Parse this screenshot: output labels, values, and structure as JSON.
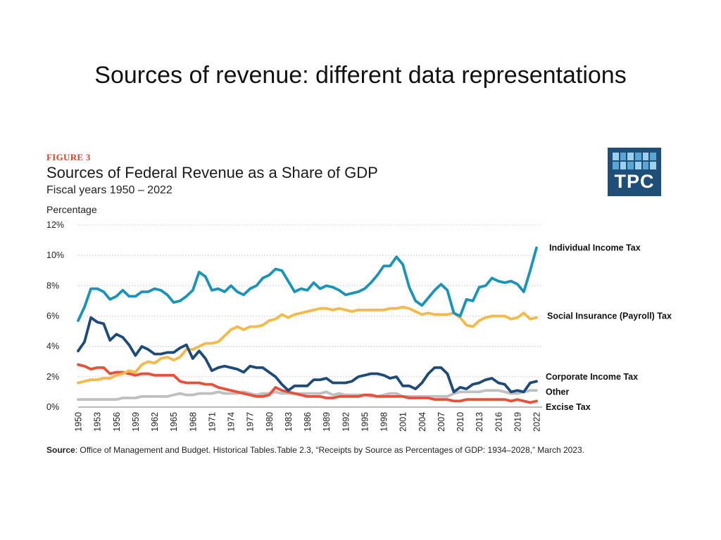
{
  "slide": {
    "title": "Sources of revenue: different data representations"
  },
  "figure": {
    "label": "FIGURE 3",
    "title": "Sources of Federal Revenue as a Share of GDP",
    "subtitle": "Fiscal years 1950 – 2022",
    "y_axis_label": "Percentage",
    "logo_text": "TPC",
    "source_label": "Source",
    "source_text": ": Office of Management and Budget. Historical Tables.Table 2.3, “Receipts by Source as Percentages of GDP: 1934–2028,” March 2023."
  },
  "chart_data": {
    "type": "line",
    "title": "Sources of Federal Revenue as a Share of GDP",
    "xlabel": "",
    "ylabel": "Percentage",
    "x_start": 1950,
    "x_end": 2022,
    "xlim": [
      1950,
      2022
    ],
    "ylim": [
      0,
      12
    ],
    "yticks": [
      0,
      2,
      4,
      6,
      8,
      10,
      12
    ],
    "ytick_labels": [
      "0%",
      "2%",
      "4%",
      "6%",
      "8%",
      "10%",
      "12%"
    ],
    "xticks": [
      1950,
      1953,
      1956,
      1959,
      1962,
      1965,
      1968,
      1971,
      1974,
      1977,
      1980,
      1983,
      1986,
      1989,
      1992,
      1995,
      1998,
      2001,
      2004,
      2007,
      2010,
      2013,
      2016,
      2019,
      2022
    ],
    "xtick_labels": [
      "1950",
      "1953",
      "1956",
      "1959",
      "1962",
      "1965",
      "1968",
      "1971",
      "1974",
      "1977",
      "1980",
      "1983",
      "1986",
      "1989",
      "1992",
      "1995",
      "1998",
      "2001",
      "2004",
      "2007",
      "2010",
      "2013",
      "2016",
      "2019",
      "2022"
    ],
    "grid": "horizontal dotted",
    "series": [
      {
        "name": "Individual Income Tax",
        "color": "#1a93b8",
        "values": [
          5.7,
          6.6,
          7.8,
          7.8,
          7.6,
          7.1,
          7.3,
          7.7,
          7.3,
          7.3,
          7.6,
          7.6,
          7.8,
          7.7,
          7.4,
          6.9,
          7.0,
          7.3,
          7.7,
          8.9,
          8.6,
          7.7,
          7.8,
          7.6,
          8.0,
          7.6,
          7.4,
          7.8,
          8.0,
          8.5,
          8.7,
          9.1,
          9.0,
          8.3,
          7.6,
          7.8,
          7.7,
          8.2,
          7.8,
          8.0,
          7.9,
          7.7,
          7.4,
          7.5,
          7.6,
          7.8,
          8.2,
          8.7,
          9.3,
          9.3,
          9.9,
          9.4,
          7.9,
          7.0,
          6.7,
          7.2,
          7.7,
          8.1,
          7.7,
          6.2,
          6.0,
          7.1,
          7.0,
          7.9,
          8.0,
          8.5,
          8.3,
          8.2,
          8.3,
          8.1,
          7.6,
          9.0,
          10.5
        ]
      },
      {
        "name": "Social Insurance (Payroll) Tax",
        "color": "#f5b94a",
        "values": [
          1.6,
          1.7,
          1.8,
          1.8,
          1.9,
          1.9,
          2.1,
          2.2,
          2.4,
          2.3,
          2.8,
          3.0,
          2.9,
          3.2,
          3.3,
          3.1,
          3.3,
          3.8,
          3.8,
          4.0,
          4.2,
          4.2,
          4.3,
          4.7,
          5.1,
          5.3,
          5.1,
          5.3,
          5.3,
          5.4,
          5.7,
          5.8,
          6.1,
          5.9,
          6.1,
          6.2,
          6.3,
          6.4,
          6.5,
          6.5,
          6.4,
          6.5,
          6.4,
          6.3,
          6.4,
          6.4,
          6.4,
          6.4,
          6.4,
          6.5,
          6.5,
          6.6,
          6.5,
          6.3,
          6.1,
          6.2,
          6.1,
          6.1,
          6.1,
          6.2,
          5.9,
          5.4,
          5.3,
          5.7,
          5.9,
          6.0,
          6.0,
          6.0,
          5.8,
          5.9,
          6.2,
          5.8,
          5.9
        ]
      },
      {
        "name": "Corporate Income Tax",
        "color": "#1e4a78",
        "values": [
          3.7,
          4.3,
          5.9,
          5.6,
          5.5,
          4.4,
          4.8,
          4.6,
          4.1,
          3.4,
          4.0,
          3.8,
          3.5,
          3.5,
          3.6,
          3.6,
          3.9,
          4.1,
          3.2,
          3.7,
          3.2,
          2.4,
          2.6,
          2.7,
          2.6,
          2.5,
          2.3,
          2.7,
          2.6,
          2.6,
          2.3,
          2.0,
          1.5,
          1.1,
          1.4,
          1.4,
          1.4,
          1.8,
          1.8,
          1.9,
          1.6,
          1.6,
          1.6,
          1.7,
          2.0,
          2.1,
          2.2,
          2.2,
          2.1,
          1.9,
          2.0,
          1.4,
          1.4,
          1.2,
          1.6,
          2.2,
          2.6,
          2.6,
          2.2,
          1.0,
          1.3,
          1.2,
          1.5,
          1.6,
          1.8,
          1.9,
          1.6,
          1.5,
          1.0,
          1.1,
          1.0,
          1.6,
          1.7
        ]
      },
      {
        "name": "Other",
        "color": "#bfbfbf",
        "values": [
          0.5,
          0.5,
          0.5,
          0.5,
          0.5,
          0.5,
          0.5,
          0.6,
          0.6,
          0.6,
          0.7,
          0.7,
          0.7,
          0.7,
          0.7,
          0.8,
          0.9,
          0.8,
          0.8,
          0.9,
          0.9,
          0.9,
          1.0,
          0.9,
          0.9,
          0.9,
          1.0,
          0.9,
          0.8,
          0.9,
          0.9,
          1.0,
          0.9,
          0.9,
          0.9,
          0.9,
          0.9,
          0.9,
          0.9,
          1.0,
          0.8,
          0.9,
          0.8,
          0.8,
          0.8,
          0.8,
          0.7,
          0.7,
          0.8,
          0.9,
          0.9,
          0.7,
          0.7,
          0.7,
          0.7,
          0.7,
          0.7,
          0.7,
          0.7,
          0.9,
          1.0,
          1.0,
          1.0,
          1.0,
          1.1,
          1.1,
          1.1,
          1.0,
          0.9,
          0.9,
          1.0,
          1.1,
          1.1
        ]
      },
      {
        "name": "Excise Tax",
        "color": "#e8503a",
        "values": [
          2.8,
          2.7,
          2.5,
          2.6,
          2.6,
          2.2,
          2.3,
          2.3,
          2.2,
          2.1,
          2.2,
          2.2,
          2.1,
          2.1,
          2.1,
          2.1,
          1.7,
          1.6,
          1.6,
          1.6,
          1.5,
          1.5,
          1.3,
          1.2,
          1.1,
          1.0,
          0.9,
          0.8,
          0.7,
          0.7,
          0.8,
          1.3,
          1.1,
          1.0,
          0.9,
          0.8,
          0.7,
          0.7,
          0.7,
          0.6,
          0.6,
          0.7,
          0.7,
          0.7,
          0.7,
          0.8,
          0.8,
          0.7,
          0.7,
          0.7,
          0.7,
          0.7,
          0.6,
          0.6,
          0.6,
          0.6,
          0.5,
          0.5,
          0.5,
          0.4,
          0.4,
          0.5,
          0.5,
          0.5,
          0.5,
          0.5,
          0.5,
          0.5,
          0.4,
          0.5,
          0.4,
          0.3,
          0.4
        ]
      }
    ],
    "legend": [
      {
        "name": "Individual Income Tax",
        "anchor_value": 10.5
      },
      {
        "name": "Social Insurance (Payroll) Tax",
        "anchor_value": 6.0
      },
      {
        "name": "Corporate Income Tax",
        "anchor_value": 2.0
      },
      {
        "name": "Other",
        "anchor_value": 1.0
      },
      {
        "name": "Excise Tax",
        "anchor_value": 0.0
      }
    ]
  }
}
